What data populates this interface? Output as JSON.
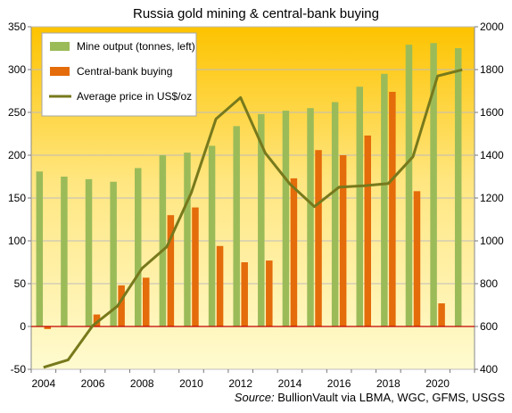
{
  "chart_data": {
    "type": "bar",
    "title": "Russia gold mining & central-bank buying",
    "source_label": "Source:",
    "source_text": " BullionVault via LBMA, WGC, GFMS, USGS",
    "x": [
      2004,
      2005,
      2006,
      2007,
      2008,
      2009,
      2010,
      2011,
      2012,
      2013,
      2014,
      2015,
      2016,
      2017,
      2018,
      2019,
      2020,
      2021
    ],
    "x_tick_labels": [
      "2004",
      "2006",
      "2008",
      "2010",
      "2012",
      "2014",
      "2016",
      "2018",
      "2020"
    ],
    "y_left_ticks": [
      "-50",
      "0",
      "50",
      "100",
      "150",
      "200",
      "250",
      "300",
      "350"
    ],
    "y_right_ticks": [
      "400",
      "600",
      "800",
      "1000",
      "1200",
      "1400",
      "1600",
      "1800",
      "2000"
    ],
    "ylim_left": [
      -50,
      350
    ],
    "ylim_right": [
      400,
      2000
    ],
    "grid": true,
    "legend_position": "top-left",
    "series": [
      {
        "name": "Mine output (tonnes, left)",
        "kind": "bar",
        "axis": "left",
        "color": "#9bbb59",
        "values": [
          181,
          175,
          172,
          169,
          185,
          200,
          203,
          211,
          234,
          248,
          252,
          255,
          262,
          280,
          295,
          329,
          331,
          325
        ]
      },
      {
        "name": "Central-bank buying",
        "kind": "bar",
        "axis": "left",
        "color": "#e46c0a",
        "values": [
          -3,
          0,
          14,
          48,
          57,
          130,
          139,
          94,
          75,
          77,
          173,
          206,
          200,
          223,
          274,
          158,
          27,
          0
        ]
      },
      {
        "name": "Average price in US$/oz",
        "kind": "line",
        "axis": "right",
        "color": "#77791c",
        "values": [
          409,
          444,
          604,
          695,
          872,
          972,
          1225,
          1569,
          1669,
          1411,
          1266,
          1160,
          1251,
          1257,
          1268,
          1393,
          1770,
          1799
        ]
      }
    ]
  }
}
